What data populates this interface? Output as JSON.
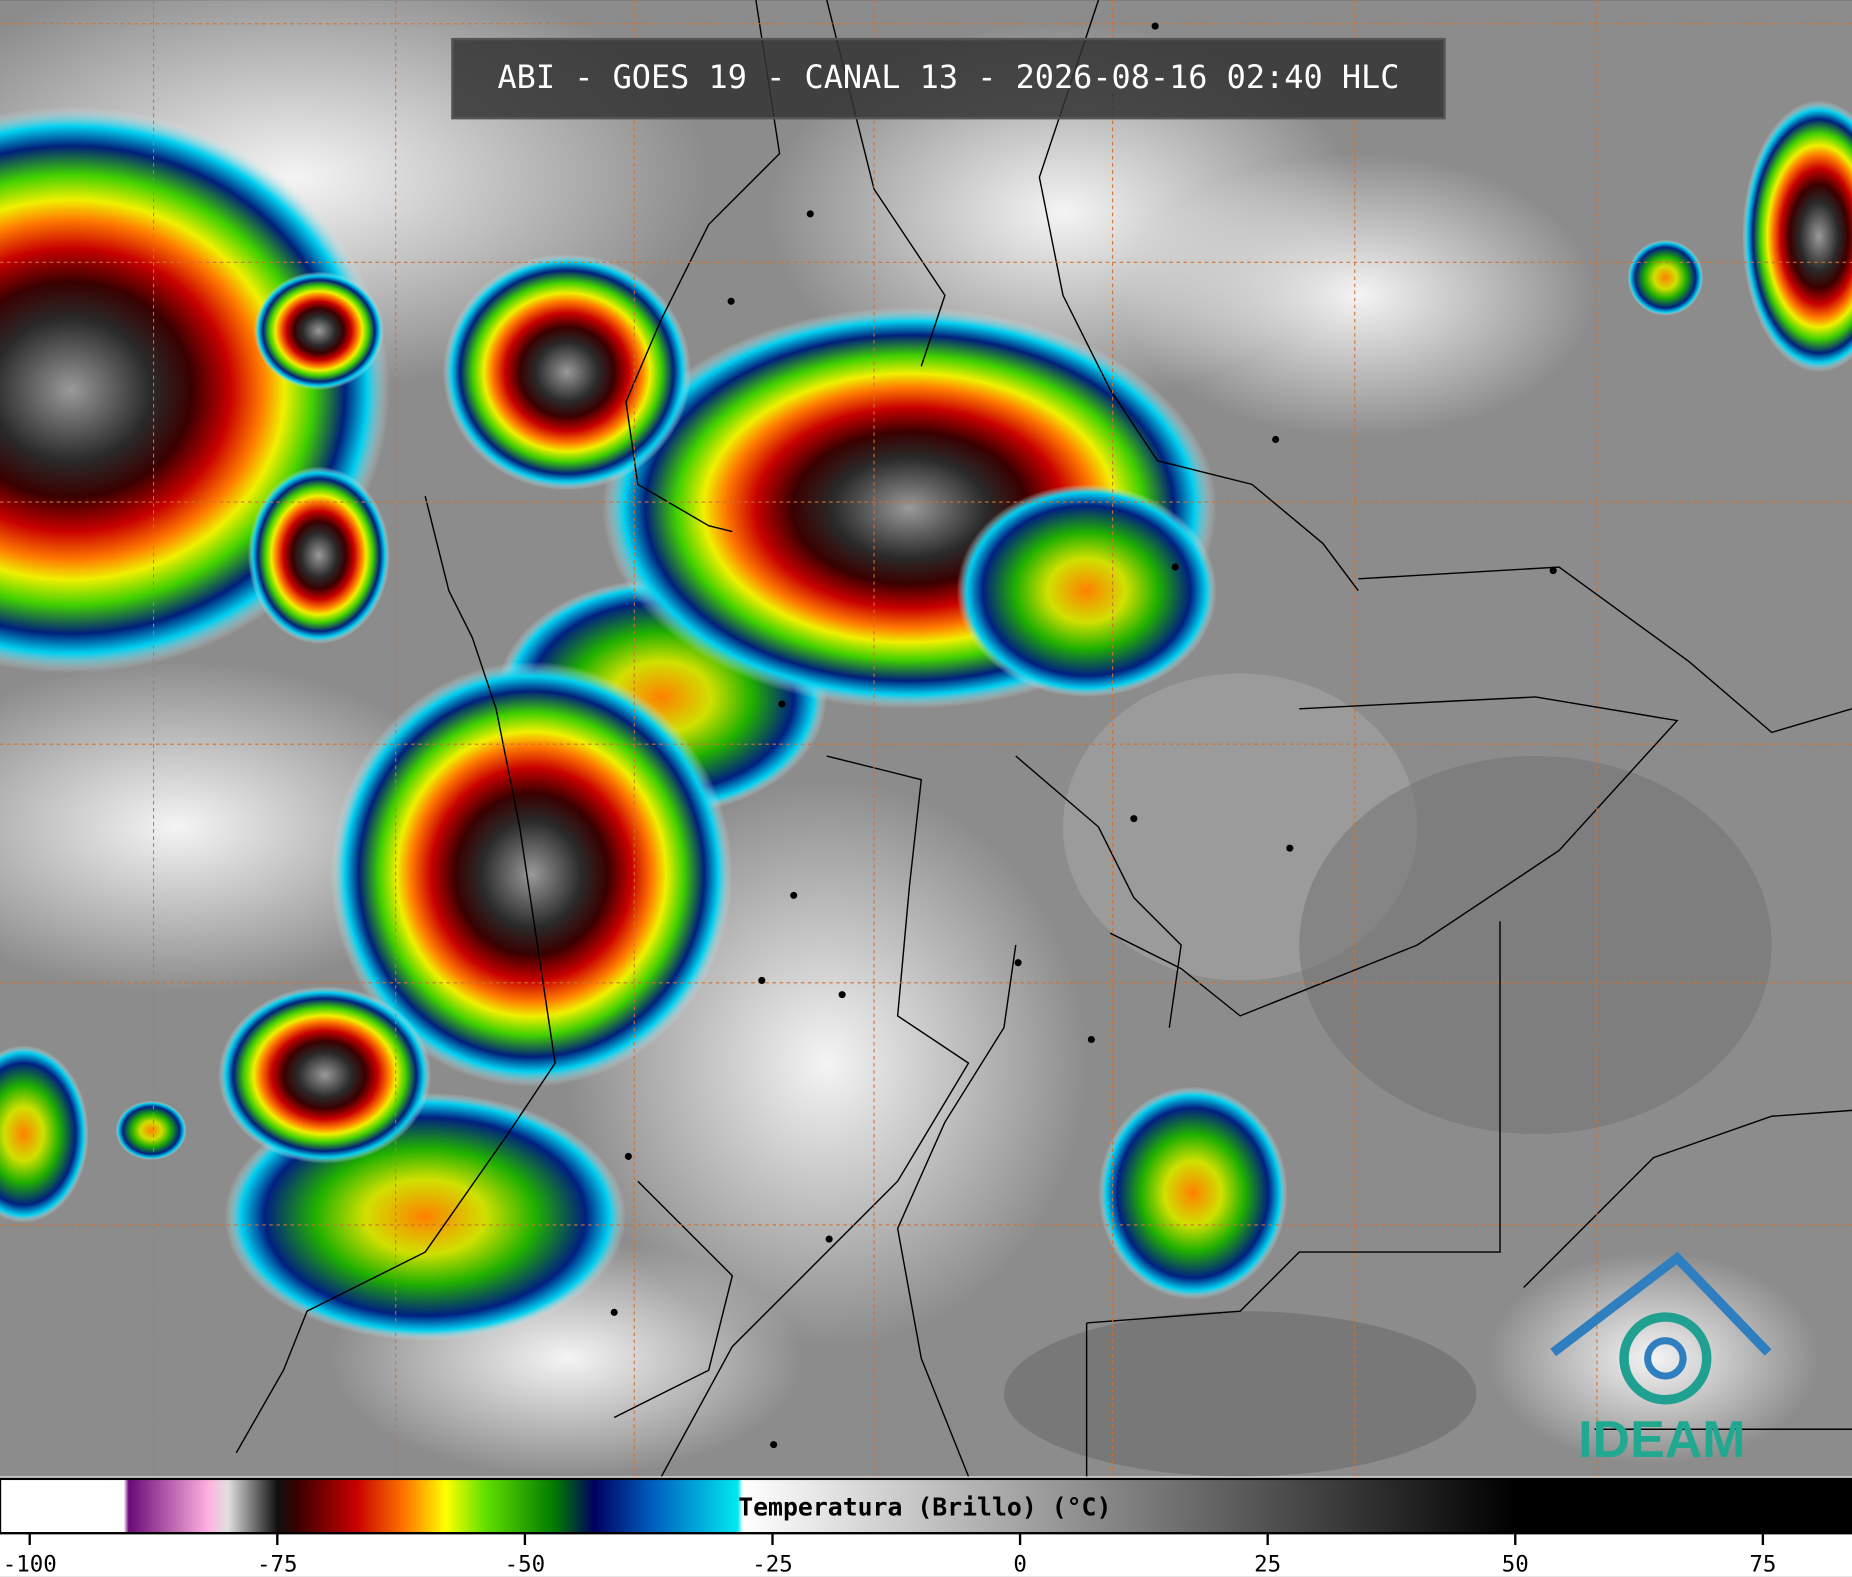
{
  "title": "ABI - GOES 19 - CANAL 13 - 2026-08-16 02:40 HLC",
  "logo": "IDEAM",
  "colorbar": {
    "label": "Temperatura (Brillo) (°C)",
    "lim": [
      -103,
      84
    ],
    "ticks": [
      -100,
      -75,
      -50,
      -25,
      0,
      25,
      50,
      75
    ],
    "stops": [
      {
        "value": -103,
        "color": "#ffffff"
      },
      {
        "value": -90.5,
        "color": "#ffffff"
      },
      {
        "value": -90,
        "color": "#6a0a78"
      },
      {
        "value": -82,
        "color": "#ffb0e0"
      },
      {
        "value": -80,
        "color": "#e0e0e0"
      },
      {
        "value": -75,
        "color": "#101010"
      },
      {
        "value": -73,
        "color": "#3a0000"
      },
      {
        "value": -67,
        "color": "#c80000"
      },
      {
        "value": -62,
        "color": "#ff7a00"
      },
      {
        "value": -58,
        "color": "#ffff00"
      },
      {
        "value": -54,
        "color": "#60e000"
      },
      {
        "value": -47,
        "color": "#007a00"
      },
      {
        "value": -43,
        "color": "#000060"
      },
      {
        "value": -37,
        "color": "#0060c0"
      },
      {
        "value": -28.5,
        "color": "#00e8f0"
      },
      {
        "value": -28,
        "color": "#ffffff"
      },
      {
        "value": 50,
        "color": "#000000"
      },
      {
        "value": 84,
        "color": "#000000"
      }
    ]
  }
}
